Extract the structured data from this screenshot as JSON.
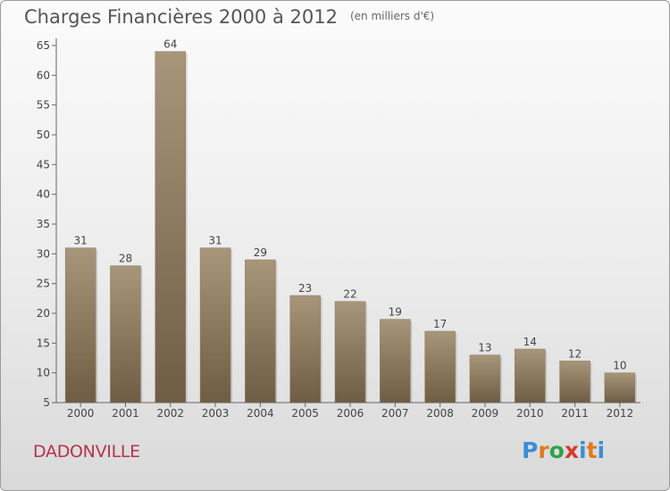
{
  "title": "Charges Financières 2000 à 2012",
  "subtitle": "(en milliers d'€)",
  "commune": "DADONVILLE",
  "logo": {
    "letters": [
      "P",
      "r",
      "o",
      "x",
      "i",
      "t",
      "i"
    ],
    "colors": [
      "#3a8ed8",
      "#e07a1f",
      "#2fa34a",
      "#d63a2e",
      "#3a8ed8",
      "#e07a1f",
      "#3a8ed8"
    ]
  },
  "colors": {
    "bar_top": "#a8967a",
    "bar_bottom": "#6f5d43",
    "axis": "#666666",
    "text": "#444444"
  },
  "chart_data": {
    "type": "bar",
    "title": "Charges Financières 2000 à 2012",
    "subtitle": "(en milliers d'€)",
    "categories": [
      "2000",
      "2001",
      "2002",
      "2003",
      "2004",
      "2005",
      "2006",
      "2007",
      "2008",
      "2009",
      "2010",
      "2011",
      "2012"
    ],
    "values": [
      31,
      28,
      64,
      31,
      29,
      23,
      22,
      19,
      17,
      13,
      14,
      12,
      10
    ],
    "ylim": [
      5,
      65
    ],
    "yticks": [
      5,
      10,
      15,
      20,
      25,
      30,
      35,
      40,
      45,
      50,
      55,
      60,
      65
    ],
    "grid": false,
    "legend": "none"
  }
}
